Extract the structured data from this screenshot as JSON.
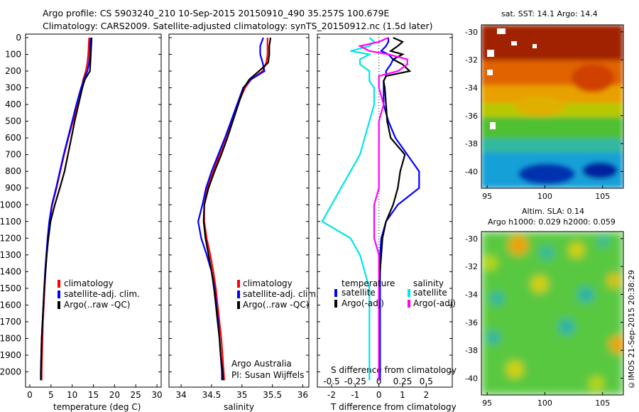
{
  "header": {
    "line1": "Argo profile: CS 5903240_210 10-Sep-2015 20150910_490 35.257S 100.679E",
    "line2": "Climatology: CARS2009. Satellite-adjusted climatology: synTS_20150912.nc (1.5d later)"
  },
  "depth_ticks": [
    "0",
    "100",
    "200",
    "300",
    "400",
    "500",
    "600",
    "700",
    "800",
    "900",
    "1000",
    "1100",
    "1200",
    "1300",
    "1400",
    "1500",
    "1600",
    "1700",
    "1800",
    "1900",
    "2000"
  ],
  "colors": {
    "climatology": "#ff0000",
    "satellite": "#0000ff",
    "argo": "#000000",
    "satellite_sal": "#00e5e5",
    "argo_sal": "#ff00ff"
  },
  "panels": {
    "temperature": {
      "xlabel": "temperature (deg C)",
      "ticks": [
        "0",
        "5",
        "10",
        "15",
        "20",
        "25",
        "30"
      ],
      "legend": [
        "climatology",
        "satellite-adj. clim.",
        "Argo(..raw -QC)"
      ]
    },
    "salinity": {
      "xlabel": "salinity",
      "ticks": [
        "34",
        "34.5",
        "35",
        "35.5",
        "36"
      ],
      "legend": [
        "climatology",
        "satellite-adj. clim.",
        "Argo(..raw -QC)"
      ],
      "credit1": "Argo Australia",
      "credit2": "PI: Susan Wijffels"
    },
    "difference": {
      "xlabel": "T difference from climatology",
      "s_label": "S difference from climatology",
      "t_ticks": [
        "-2",
        "-1",
        "0",
        "1",
        "2"
      ],
      "s_ticks": [
        "-0.5",
        "-0.25",
        "0",
        "0.25",
        "0.5"
      ],
      "legend_t_title": "temperature",
      "legend_s_title": "salinity",
      "legend_t": [
        "satellite",
        "Argo(-adj)"
      ],
      "legend_s": [
        "satellite",
        "Argo(-adj)"
      ]
    }
  },
  "maps": {
    "sst_title": "sat. SST: 14.1 Argo: 14.4",
    "sla_title1": "Altim. SLA: 0.14",
    "sla_title2": "Argo h1000: 0.029 h2000: 0.059",
    "lat_ticks": [
      "-30",
      "-32",
      "-34",
      "-36",
      "-38",
      "-40"
    ],
    "lon_ticks": [
      "95",
      "100",
      "105"
    ]
  },
  "stamp": "©IMOS 21-Sep-2015 20:38:29",
  "chart_data": [
    {
      "type": "line",
      "title": "",
      "xlabel": "temperature (deg C)",
      "ylabel": "",
      "xlim": [
        -1,
        31
      ],
      "ylim": [
        2070,
        0
      ],
      "y_depth": [
        0,
        50,
        100,
        150,
        200,
        250,
        300,
        400,
        500,
        600,
        700,
        800,
        900,
        1000,
        1100,
        1200,
        1300,
        1400,
        1500,
        1600,
        1700,
        1800,
        1900,
        2000,
        2050
      ],
      "series": [
        {
          "name": "climatology",
          "values": [
            14,
            13.9,
            13.8,
            13.6,
            13.2,
            12.6,
            12.2,
            11.2,
            10.2,
            9.1,
            8.1,
            7.2,
            6.3,
            5.3,
            4.7,
            4.3,
            4.0,
            3.7,
            3.5,
            3.3,
            3.1,
            3.0,
            2.9,
            2.8,
            2.8
          ]
        },
        {
          "name": "satellite-adj. clim.",
          "values": [
            14.4,
            14.2,
            14.2,
            14.0,
            13.6,
            12.8,
            12.1,
            11.0,
            10.0,
            9.0,
            8.0,
            7.1,
            6.2,
            5.2,
            4.6,
            4.2,
            3.9,
            3.6,
            3.4,
            3.2,
            3.0,
            2.8,
            2.7,
            2.6,
            2.6
          ]
        },
        {
          "name": "Argo(..raw -QC)",
          "values": [
            14.6,
            14.5,
            14.4,
            14.3,
            14.2,
            13.0,
            12.4,
            11.5,
            10.6,
            9.8,
            9.0,
            8.2,
            7.1,
            5.9,
            4.9,
            4.4,
            4.0,
            3.7,
            3.4,
            3.2,
            3.0,
            2.8,
            2.7,
            2.6,
            2.6
          ]
        }
      ]
    },
    {
      "type": "line",
      "title": "",
      "xlabel": "salinity",
      "ylabel": "",
      "xlim": [
        33.8,
        36.1
      ],
      "ylim": [
        2070,
        0
      ],
      "y_depth": [
        0,
        50,
        100,
        150,
        200,
        250,
        300,
        400,
        500,
        600,
        700,
        800,
        900,
        1000,
        1100,
        1200,
        1300,
        1400,
        1500,
        1600,
        1700,
        1800,
        1900,
        2000,
        2050
      ],
      "series": [
        {
          "name": "climatology",
          "values": [
            35.42,
            35.42,
            35.42,
            35.4,
            35.34,
            35.15,
            35.05,
            34.93,
            34.83,
            34.73,
            34.63,
            34.53,
            34.43,
            34.38,
            34.38,
            34.42,
            34.48,
            34.53,
            34.57,
            34.6,
            34.63,
            34.66,
            34.68,
            34.7,
            34.71
          ]
        },
        {
          "name": "satellite-adj. clim.",
          "values": [
            35.35,
            35.3,
            35.3,
            35.34,
            35.37,
            35.15,
            35.02,
            34.92,
            34.82,
            34.72,
            34.61,
            34.5,
            34.41,
            34.35,
            34.28,
            34.33,
            34.42,
            34.5,
            34.55,
            34.58,
            34.61,
            34.63,
            34.65,
            34.67,
            34.67
          ]
        },
        {
          "name": "Argo(..raw -QC)",
          "values": [
            35.47,
            35.45,
            35.45,
            35.43,
            35.28,
            35.12,
            35.03,
            34.94,
            34.85,
            34.76,
            34.66,
            34.55,
            34.45,
            34.38,
            34.37,
            34.4,
            34.45,
            34.5,
            34.54,
            34.57,
            34.6,
            34.63,
            34.65,
            34.68,
            34.69
          ]
        }
      ]
    },
    {
      "type": "line",
      "title": "",
      "xlabel": "T difference from climatology",
      "ylabel": "",
      "xlim": [
        -2.6,
        3.1
      ],
      "ylim": [
        2070,
        0
      ],
      "y_depth": [
        0,
        25,
        50,
        80,
        100,
        130,
        160,
        200,
        230,
        260,
        300,
        400,
        500,
        600,
        700,
        800,
        900,
        1000,
        1100,
        1200,
        1300,
        1400,
        1500,
        1600,
        1700,
        1800,
        1900,
        2000,
        2050
      ],
      "series": [
        {
          "name": "temperature satellite",
          "values": [
            0.4,
            0.4,
            0.3,
            0.1,
            0.4,
            0.6,
            0.5,
            0.3,
            0.3,
            0.2,
            0.2,
            0.2,
            0.4,
            0.7,
            1.2,
            1.7,
            1.7,
            0.8,
            0.3,
            0.1,
            0.05,
            0.05,
            0.05,
            0.05,
            0.05,
            0.05,
            0.05,
            0.05,
            0.05
          ]
        },
        {
          "name": "temperature Argo(-adj)",
          "values": [
            0.6,
            1.0,
            0.8,
            0.5,
            1.0,
            0.6,
            1.0,
            1.3,
            0.3,
            0.2,
            0.25,
            0.3,
            0.35,
            0.5,
            1.1,
            0.9,
            0.8,
            0.6,
            0.3,
            0.15,
            0.1,
            0.05,
            0.0,
            0.0,
            0.0,
            0.0,
            0.0,
            0.0,
            0.0
          ]
        },
        {
          "name": "salinity satellite",
          "values": [
            -0.1,
            -0.05,
            -0.1,
            -0.3,
            -0.1,
            -0.2,
            -0.2,
            -0.1,
            -0.1,
            -0.1,
            -0.05,
            -0.05,
            -0.1,
            -0.15,
            -0.2,
            -0.3,
            -0.4,
            -0.5,
            -0.6,
            -0.3,
            -0.2,
            -0.15,
            -0.1,
            -0.1,
            -0.1,
            -0.1,
            -0.1,
            -0.1,
            -0.1
          ]
        },
        {
          "name": "salinity Argo(-adj)",
          "values": [
            0.1,
            0.0,
            -0.2,
            -0.1,
            0.1,
            0.3,
            0.3,
            0.2,
            0.0,
            0.0,
            0.0,
            0.05,
            0.0,
            0.0,
            0.0,
            0.0,
            0.0,
            -0.05,
            -0.05,
            -0.05,
            0.0,
            0.0,
            0.0,
            0.0,
            0.0,
            0.0,
            0.0,
            0.0,
            0.0
          ]
        }
      ]
    },
    {
      "type": "heatmap",
      "title": "sat. SST: 14.1 Argo: 14.4",
      "xlabel": "",
      "ylabel": "",
      "xlim": [
        94.5,
        106.8
      ],
      "ylim": [
        -41.2,
        -29.5
      ],
      "x": [
        95,
        100,
        105
      ],
      "y": [
        -30,
        -32,
        -34,
        -36,
        -38,
        -40
      ]
    },
    {
      "type": "heatmap",
      "title": "Altim. SLA: 0.14",
      "xlabel": "",
      "ylabel": "",
      "xlim": [
        94.5,
        106.8
      ],
      "ylim": [
        -41.2,
        -29.5
      ],
      "x": [
        95,
        100,
        105
      ],
      "y": [
        -30,
        -32,
        -34,
        -36,
        -38,
        -40
      ]
    }
  ]
}
